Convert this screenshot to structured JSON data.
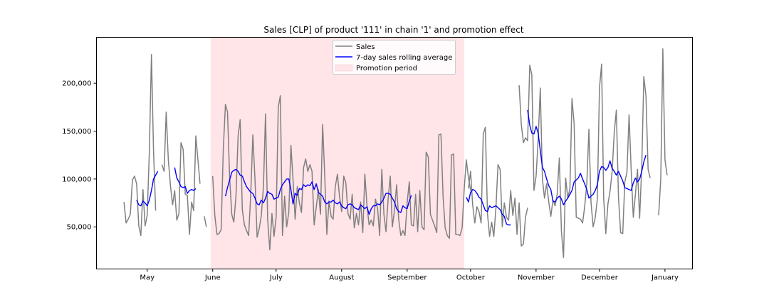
{
  "chart_data": {
    "type": "line",
    "title": "Sales [CLP] of product '111' in chain '1' and promotion effect",
    "xlabel": "",
    "ylabel": "",
    "xlim": [
      "2021-04-07",
      "2022-01-14"
    ],
    "ylim": [
      6000,
      248000
    ],
    "grid": false,
    "legend_position": "top-center",
    "x_ticks": [
      {
        "date": "2021-05-01",
        "label": "May"
      },
      {
        "date": "2021-06-01",
        "label": "June"
      },
      {
        "date": "2021-07-01",
        "label": "July"
      },
      {
        "date": "2021-08-01",
        "label": "August"
      },
      {
        "date": "2021-09-01",
        "label": "September"
      },
      {
        "date": "2021-10-01",
        "label": "October"
      },
      {
        "date": "2021-11-01",
        "label": "November"
      },
      {
        "date": "2021-12-01",
        "label": "December"
      },
      {
        "date": "2022-01-01",
        "label": "January"
      }
    ],
    "y_ticks": [
      {
        "value": 50000,
        "label": "50,000"
      },
      {
        "value": 100000,
        "label": "100,000"
      },
      {
        "value": 150000,
        "label": "150,000"
      },
      {
        "value": 200000,
        "label": "200,000"
      }
    ],
    "promotion_periods": [
      [
        "2021-05-31",
        "2021-06-27"
      ],
      [
        "2021-06-28",
        "2021-08-30"
      ],
      [
        "2021-08-31",
        "2021-09-27"
      ]
    ],
    "series": [
      {
        "name": "Sales",
        "color": "#808080",
        "segments": [
          {
            "start": "2021-04-20",
            "values": [
              76000,
              54000,
              58000,
              63000,
              99000,
              103000,
              95000,
              51000,
              41000,
              89000,
              51000,
              62000,
              127000,
              230000,
              130000,
              67000
            ]
          },
          {
            "start": "2021-05-08",
            "values": [
              115000,
              108000,
              170000,
              120000,
              93000,
              73000,
              88000,
              57000,
              64000,
              138000,
              131000,
              84000,
              83000,
              42000,
              76000,
              67000,
              145000,
              120000,
              95000
            ]
          },
          {
            "start": "2021-05-28",
            "values": [
              61000,
              50000
            ]
          },
          {
            "start": "2021-06-01",
            "values": [
              103000,
              62000,
              42000,
              43000,
              47000,
              131000,
              178000,
              170000,
              102000,
              63000,
              55000,
              82000,
              145000,
              162000,
              68000,
              52000,
              46000,
              41000,
              85000,
              146000,
              100000,
              39000,
              48000,
              62000,
              92000,
              168000,
              58000,
              26000,
              64000,
              40000,
              60000,
              175000,
              187000,
              41000,
              82000,
              50000,
              65000,
              135000,
              100000,
              58000,
              92000,
              75000,
              65000,
              112000,
              121000,
              108000,
              115000,
              108000,
              52000,
              71000,
              89000,
              63000,
              157000,
              103000,
              42000,
              77000,
              61000,
              58000,
              92000,
              105000,
              82000,
              66000,
              103000,
              96000,
              64000,
              58000,
              84000,
              49000,
              64000,
              52000,
              76000,
              44000,
              105000,
              72000,
              52000,
              57000,
              51000,
              79000,
              69000,
              41000,
              110000,
              63000,
              45000,
              79000,
              103000,
              50000,
              67000,
              94000,
              58000,
              41000,
              46000,
              41000,
              75000,
              97000,
              52000,
              51000,
              84000,
              45000,
              88000,
              50000,
              47000,
              128000,
              123000,
              63000,
              57000,
              51000,
              44000,
              146000,
              147000,
              81000,
              49000,
              41000,
              38000,
              125000,
              126000,
              42000,
              42000,
              41000,
              49000,
              89000,
              120000,
              101000,
              88000
            ]
          },
          {
            "start": "2021-09-30",
            "values": [
              90000,
              108000,
              73000,
              54000,
              71000,
              66000,
              54000,
              147000,
              154000,
              64000,
              40000,
              55000,
              40000,
              70000,
              115000,
              110000,
              50000,
              75000,
              60000,
              57000,
              88000,
              62000,
              80000,
              42000,
              75000,
              30000,
              32000,
              60000,
              70000
            ]
          },
          {
            "start": "2021-10-24",
            "values": [
              198000,
              157000,
              138000,
              143000,
              140000,
              219000,
              209000,
              88000,
              103000,
              141000,
              195000,
              100000,
              80000,
              95000,
              76000,
              61000,
              78000,
              72000,
              84000,
              122000,
              45000,
              18000,
              101000,
              80000,
              90000,
              184000,
              158000,
              60000,
              59000,
              58000,
              54000,
              71000,
              95000,
              152000,
              76000,
              50000,
              60000,
              79000,
              195000,
              220000,
              80000,
              43000,
              74000,
              87000,
              108000,
              149000,
              172000,
              81000,
              44000,
              43000,
              97000,
              107000,
              167000,
              110000,
              60000,
              84000,
              110000,
              59000,
              113000,
              207000,
              187000,
              110000,
              101000
            ]
          },
          {
            "start": "2021-12-29",
            "values": [
              62000,
              100000,
              236000,
              120000,
              104000
            ]
          }
        ]
      },
      {
        "name": "7-day sales rolling average",
        "color": "#0000ff",
        "segments": [
          {
            "start": "2021-04-26",
            "values": [
              78000,
              73000,
              72000,
              77000,
              75000,
              72000,
              78000,
              88000,
              100000,
              104000,
              108000
            ]
          },
          {
            "start": "2021-05-14",
            "values": [
              112000,
              101000,
              97000,
              92000,
              91000,
              92000,
              85000,
              88000,
              89000,
              88000,
              90000
            ]
          },
          {
            "start": "2021-06-07",
            "values": [
              82000,
              91000,
              99000,
              107000,
              109000,
              110000,
              108000,
              104000,
              103000,
              97000,
              92000,
              89000,
              86000,
              85000,
              80000,
              74000,
              73000,
              78000,
              75000,
              80000,
              87000,
              85000,
              84000,
              79000,
              80000,
              81000,
              89000,
              94000,
              97000,
              100000,
              100000,
              89000,
              74000,
              85000,
              83000,
              90000,
              89000,
              94000,
              92000,
              94000,
              93000,
              97000,
              89000,
              95000,
              86000,
              84000,
              82000,
              76000,
              74000,
              76000,
              76000,
              78000,
              75000,
              74000,
              76000,
              72000,
              70000,
              69000,
              73000,
              74000,
              73000,
              70000,
              69000,
              68000,
              73000,
              71000,
              69000,
              71000,
              63000,
              69000,
              72000,
              72000,
              74000,
              73000,
              76000,
              80000,
              85000,
              85000,
              84000,
              80000,
              76000,
              69000,
              66000,
              65000,
              72000,
              70000,
              69000,
              77000,
              83000
            ]
          }
        ]
      },
      {
        "name": "7-day sales rolling average",
        "color": "#0000ff",
        "segments": [
          {
            "start": "2021-09-29",
            "values": [
              81000,
              76000,
              86000,
              89000,
              88000,
              85000,
              81000,
              79000,
              73000,
              67000,
              66000,
              72000,
              70000,
              71000,
              72000,
              70000,
              68000,
              63000,
              61000,
              53000,
              52000,
              52000
            ]
          },
          {
            "start": "2021-10-28",
            "values": [
              172000,
              156000,
              148000,
              147000,
              155000,
              148000,
              130000,
              112000,
              108000,
              100000,
              93000,
              89000,
              77000,
              76000,
              80000,
              82000,
              79000,
              73000,
              77000,
              80000,
              84000,
              88000,
              97000,
              99000,
              101000,
              106000,
              100000,
              95000,
              89000,
              80000,
              82000,
              84000,
              88000,
              94000,
              108000,
              113000,
              112000,
              109000,
              112000,
              119000,
              111000,
              108000,
              104000,
              108000,
              103000,
              98000,
              91000,
              90000,
              89000,
              88000,
              96000,
              101000,
              97000,
              100000,
              108000,
              118000,
              125000
            ]
          }
        ]
      }
    ],
    "legend": [
      {
        "label": "Sales",
        "kind": "line",
        "color": "#808080"
      },
      {
        "label": "7-day sales rolling average",
        "kind": "line",
        "color": "#0000ff"
      },
      {
        "label": "Promotion period",
        "kind": "patch",
        "color": "#ffe4e8"
      }
    ]
  }
}
